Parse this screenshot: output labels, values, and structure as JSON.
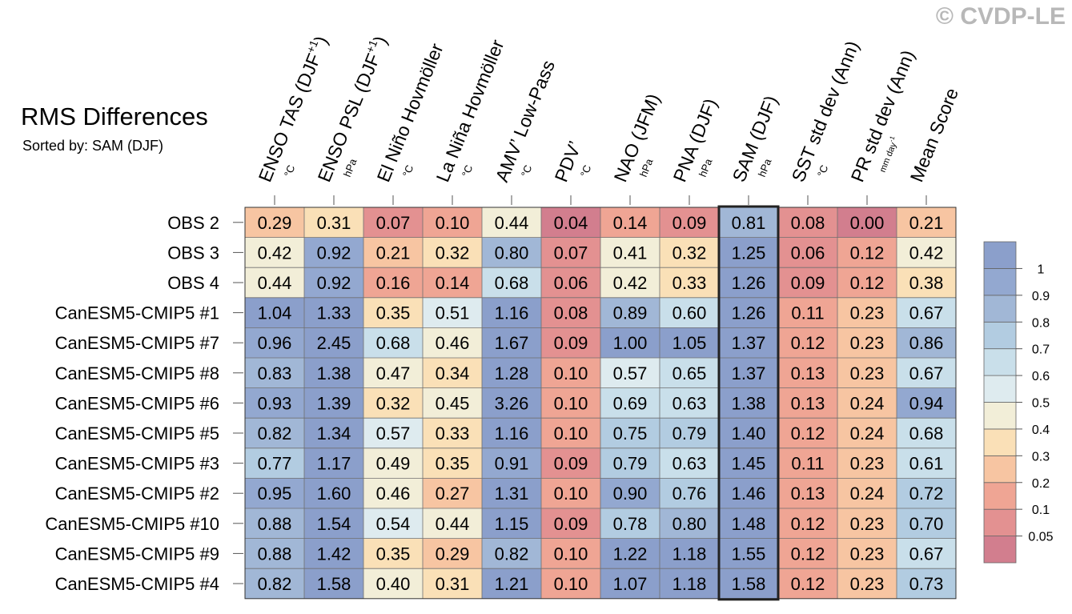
{
  "copyright": "© CVDP-LE",
  "chart_data": {
    "type": "heatmap",
    "title": "RMS Differences",
    "subtitle": "Sorted by: SAM (DJF)",
    "highlight_column": 8,
    "columns": [
      {
        "label": "ENSO TAS (DJF",
        "sup": "+1",
        "tail": ")",
        "unit": "°C"
      },
      {
        "label": "ENSO PSL (DJF",
        "sup": "+1",
        "tail": ")",
        "unit": "hPa"
      },
      {
        "label": "El Niño Hovmöller",
        "sup": "",
        "tail": "",
        "unit": "°C"
      },
      {
        "label": "La Niña Hovmöller",
        "sup": "",
        "tail": "",
        "unit": "°C"
      },
      {
        "label": "AMV’ Low-Pass",
        "sup": "",
        "tail": "",
        "unit": "°C"
      },
      {
        "label": "PDV’",
        "sup": "",
        "tail": "",
        "unit": "°C"
      },
      {
        "label": "NAO (JFM)",
        "sup": "",
        "tail": "",
        "unit": "hPa"
      },
      {
        "label": "PNA (DJF)",
        "sup": "",
        "tail": "",
        "unit": "hPa"
      },
      {
        "label": "SAM (DJF)",
        "sup": "",
        "tail": "",
        "unit": "hPa"
      },
      {
        "label": "SST std dev (Ann)",
        "sup": "",
        "tail": "",
        "unit": "°C"
      },
      {
        "label": "PR std dev (Ann)",
        "sup": "",
        "tail": "",
        "unit": "mm day-1"
      },
      {
        "label": "Mean Score",
        "sup": "",
        "tail": "",
        "unit": ""
      }
    ],
    "rows": [
      {
        "name": "OBS 2",
        "values": [
          0.29,
          0.31,
          0.07,
          0.1,
          0.44,
          0.04,
          0.14,
          0.09,
          0.81,
          0.08,
          0.0,
          0.21
        ]
      },
      {
        "name": "OBS 3",
        "values": [
          0.42,
          0.92,
          0.21,
          0.32,
          0.8,
          0.07,
          0.41,
          0.32,
          1.25,
          0.06,
          0.12,
          0.42
        ]
      },
      {
        "name": "OBS 4",
        "values": [
          0.44,
          0.92,
          0.16,
          0.14,
          0.68,
          0.06,
          0.42,
          0.33,
          1.26,
          0.09,
          0.12,
          0.38
        ]
      },
      {
        "name": "CanESM5-CMIP5 #1",
        "values": [
          1.04,
          1.33,
          0.35,
          0.51,
          1.16,
          0.08,
          0.89,
          0.6,
          1.26,
          0.11,
          0.23,
          0.67
        ]
      },
      {
        "name": "CanESM5-CMIP5 #7",
        "values": [
          0.96,
          2.45,
          0.68,
          0.46,
          1.67,
          0.09,
          1.0,
          1.05,
          1.37,
          0.12,
          0.23,
          0.86
        ]
      },
      {
        "name": "CanESM5-CMIP5 #8",
        "values": [
          0.83,
          1.38,
          0.47,
          0.34,
          1.28,
          0.1,
          0.57,
          0.65,
          1.37,
          0.13,
          0.23,
          0.67
        ]
      },
      {
        "name": "CanESM5-CMIP5 #6",
        "values": [
          0.93,
          1.39,
          0.32,
          0.45,
          3.26,
          0.1,
          0.69,
          0.63,
          1.38,
          0.13,
          0.24,
          0.94
        ]
      },
      {
        "name": "CanESM5-CMIP5 #5",
        "values": [
          0.82,
          1.34,
          0.57,
          0.33,
          1.16,
          0.1,
          0.75,
          0.79,
          1.4,
          0.12,
          0.24,
          0.68
        ]
      },
      {
        "name": "CanESM5-CMIP5 #3",
        "values": [
          0.77,
          1.17,
          0.49,
          0.35,
          0.91,
          0.09,
          0.79,
          0.63,
          1.45,
          0.11,
          0.23,
          0.61
        ]
      },
      {
        "name": "CanESM5-CMIP5 #2",
        "values": [
          0.95,
          1.6,
          0.46,
          0.27,
          1.31,
          0.1,
          0.9,
          0.76,
          1.46,
          0.13,
          0.24,
          0.72
        ]
      },
      {
        "name": "CanESM5-CMIP5 #10",
        "values": [
          0.88,
          1.54,
          0.54,
          0.44,
          1.15,
          0.09,
          0.78,
          0.8,
          1.48,
          0.12,
          0.23,
          0.7
        ]
      },
      {
        "name": "CanESM5-CMIP5 #9",
        "values": [
          0.88,
          1.42,
          0.35,
          0.29,
          0.82,
          0.1,
          1.22,
          1.18,
          1.55,
          0.12,
          0.23,
          0.67
        ]
      },
      {
        "name": "CanESM5-CMIP5 #4",
        "values": [
          0.82,
          1.58,
          0.4,
          0.31,
          1.21,
          0.1,
          1.07,
          1.18,
          1.58,
          0.12,
          0.23,
          0.73
        ]
      }
    ],
    "colorbar": {
      "boundaries": [
        0.05,
        0.1,
        0.2,
        0.3,
        0.4,
        0.5,
        0.6,
        0.7,
        0.8,
        0.9,
        1
      ],
      "tick_labels": [
        "0.05",
        "0.1",
        "0.2",
        "0.3",
        "0.4",
        "0.5",
        "0.6",
        "0.7",
        "0.8",
        "0.9",
        "1"
      ],
      "colors": [
        "#d27e8e",
        "#e39191",
        "#efa594",
        "#f7c5a2",
        "#fae0b7",
        "#f2eed8",
        "#deebef",
        "#c9dfea",
        "#b2cce1",
        "#a1b7d6",
        "#93a8d0",
        "#8b9fcb"
      ]
    }
  }
}
